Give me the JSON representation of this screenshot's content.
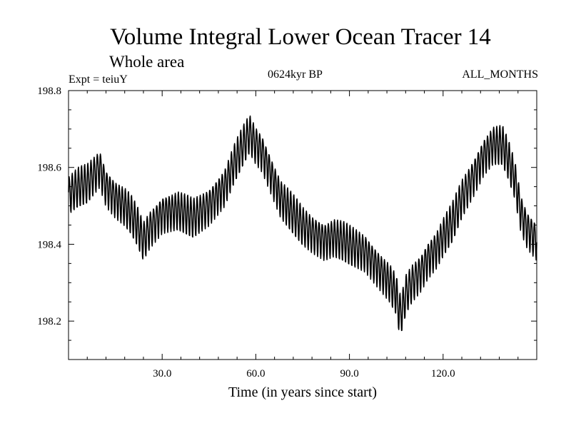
{
  "chart_data": {
    "type": "line",
    "title": "Volume Integral Lower Ocean Tracer 14",
    "subtitle": "Whole area",
    "annotations": {
      "experiment": "Expt = teiuY",
      "period": "0624kyr BP",
      "months": "ALL_MONTHS"
    },
    "xlabel": "Time (in years since start)",
    "ylabel": "",
    "xlim": [
      0,
      150
    ],
    "ylim": [
      198.1,
      198.8
    ],
    "x_ticks": [
      30,
      60,
      90,
      120
    ],
    "x_tick_labels": [
      "30.0",
      "60.0",
      "90.0",
      "120.0"
    ],
    "y_ticks": [
      198.2,
      198.4,
      198.6,
      198.8
    ],
    "y_tick_labels": [
      "198.2",
      "198.4",
      "198.6",
      "198.8"
    ],
    "grid": false,
    "oscillation_period_years": 1,
    "oscillation_amplitude": 0.055,
    "series": [
      {
        "name": "Lower Ocean Tracer 14 volume integral",
        "envelope_x": [
          0,
          3,
          6,
          8,
          10,
          12,
          15,
          18,
          20,
          22,
          24,
          26,
          28,
          30,
          35,
          40,
          45,
          50,
          53,
          56,
          58,
          60,
          62,
          65,
          68,
          70,
          72,
          75,
          78,
          80,
          82,
          85,
          88,
          90,
          95,
          100,
          103,
          105,
          106,
          107,
          108,
          110,
          113,
          115,
          118,
          120,
          123,
          126,
          130,
          133,
          136,
          139,
          141,
          143,
          145,
          147,
          150
        ],
        "envelope_y": [
          198.53,
          198.55,
          198.56,
          198.58,
          198.6,
          198.55,
          198.52,
          198.5,
          198.48,
          198.45,
          198.41,
          198.44,
          198.46,
          198.48,
          198.49,
          198.47,
          198.5,
          198.55,
          198.61,
          198.66,
          198.69,
          198.66,
          198.64,
          198.58,
          198.52,
          198.5,
          198.48,
          198.45,
          198.43,
          198.42,
          198.41,
          198.42,
          198.41,
          198.4,
          198.38,
          198.33,
          198.3,
          198.27,
          198.22,
          198.23,
          198.27,
          198.3,
          198.33,
          198.36,
          198.39,
          198.42,
          198.46,
          198.52,
          198.58,
          198.63,
          198.66,
          198.66,
          198.62,
          198.57,
          198.48,
          198.44,
          198.41
        ]
      }
    ]
  }
}
